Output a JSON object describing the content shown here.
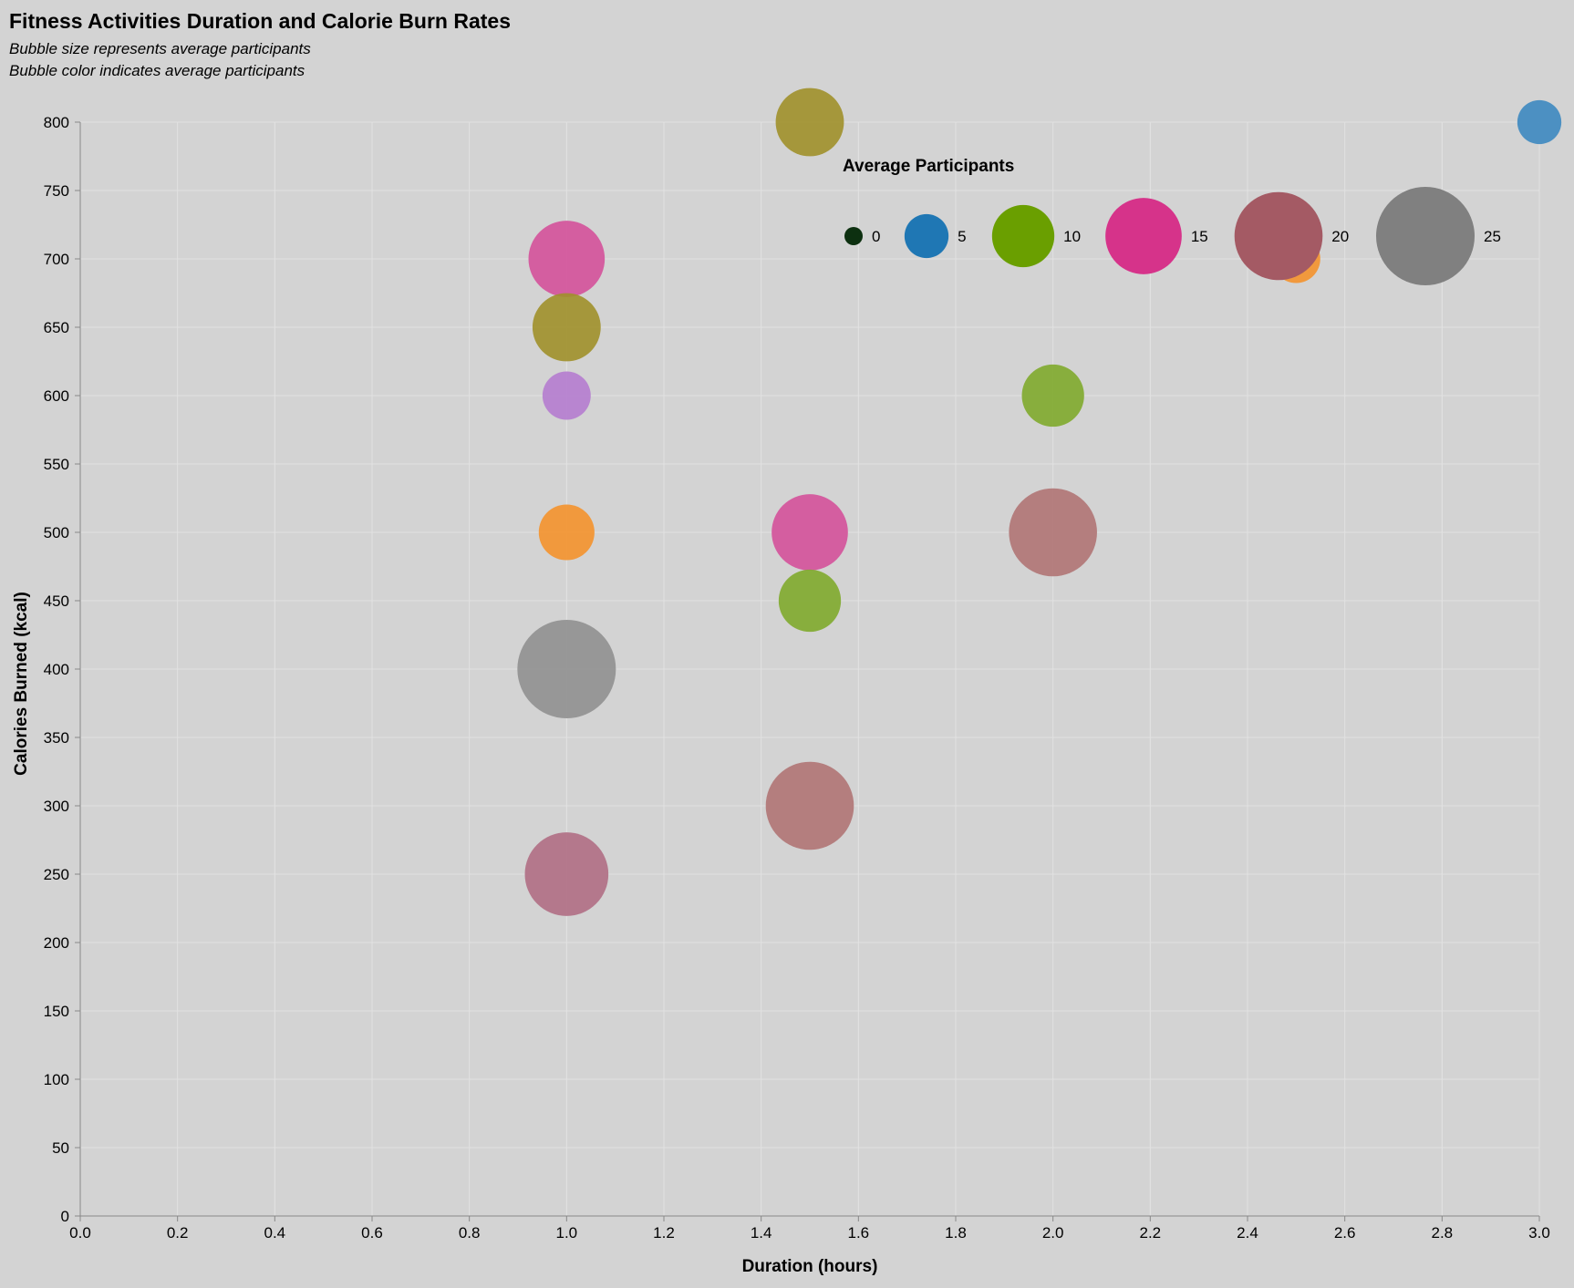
{
  "chart_data": {
    "type": "scatter",
    "title": "Fitness Activities Duration and Calorie Burn Rates",
    "subtitle": [
      "Bubble size represents average participants",
      "Bubble color indicates average participants"
    ],
    "xlabel": "Duration (hours)",
    "ylabel": "Calories Burned (kcal)",
    "xlim": [
      0,
      3.0
    ],
    "ylim": [
      0,
      800
    ],
    "x_ticks": [
      "0.0",
      "0.2",
      "0.4",
      "0.6",
      "0.8",
      "1.0",
      "1.2",
      "1.4",
      "1.6",
      "1.8",
      "2.0",
      "2.2",
      "2.4",
      "2.6",
      "2.8",
      "3.0"
    ],
    "y_ticks": [
      "0",
      "50",
      "100",
      "150",
      "200",
      "250",
      "300",
      "350",
      "400",
      "450",
      "500",
      "550",
      "600",
      "650",
      "700",
      "750",
      "800"
    ],
    "grid": true,
    "legend": {
      "title": "Average Participants",
      "placement": "top-right",
      "items": [
        {
          "label": "0",
          "value": 0.3,
          "color": "#0d3010"
        },
        {
          "label": "5",
          "value": 5,
          "color": "#1f77b4"
        },
        {
          "label": "10",
          "value": 10,
          "color": "#6a9f00"
        },
        {
          "label": "15",
          "value": 15,
          "color": "#d6338a"
        },
        {
          "label": "20",
          "value": 20,
          "color": "#a45a64"
        },
        {
          "label": "25",
          "value": 25,
          "color": "#808080"
        }
      ]
    },
    "points": [
      {
        "x": 1.5,
        "y": 800,
        "participants": 12,
        "color": "#a0902a"
      },
      {
        "x": 3.0,
        "y": 800,
        "participants": 5,
        "color": "#3d88c0"
      },
      {
        "x": 1.0,
        "y": 700,
        "participants": 15,
        "color": "#d4519a"
      },
      {
        "x": 2.5,
        "y": 700,
        "participants": 6,
        "color": "#f4922c"
      },
      {
        "x": 1.0,
        "y": 650,
        "participants": 12,
        "color": "#a0902a"
      },
      {
        "x": 1.0,
        "y": 600,
        "participants": 6,
        "color": "#b57ccf"
      },
      {
        "x": 2.0,
        "y": 600,
        "participants": 10,
        "color": "#7faa2c"
      },
      {
        "x": 1.0,
        "y": 500,
        "participants": 8,
        "color": "#f4922c"
      },
      {
        "x": 1.5,
        "y": 500,
        "participants": 15,
        "color": "#d4519a"
      },
      {
        "x": 2.0,
        "y": 500,
        "participants": 20,
        "color": "#b07474"
      },
      {
        "x": 1.5,
        "y": 450,
        "participants": 10,
        "color": "#7faa2c"
      },
      {
        "x": 1.0,
        "y": 400,
        "participants": 25,
        "color": "#909090"
      },
      {
        "x": 1.5,
        "y": 300,
        "participants": 20,
        "color": "#b07474"
      },
      {
        "x": 1.0,
        "y": 250,
        "participants": 18,
        "color": "#b06e84"
      }
    ]
  }
}
